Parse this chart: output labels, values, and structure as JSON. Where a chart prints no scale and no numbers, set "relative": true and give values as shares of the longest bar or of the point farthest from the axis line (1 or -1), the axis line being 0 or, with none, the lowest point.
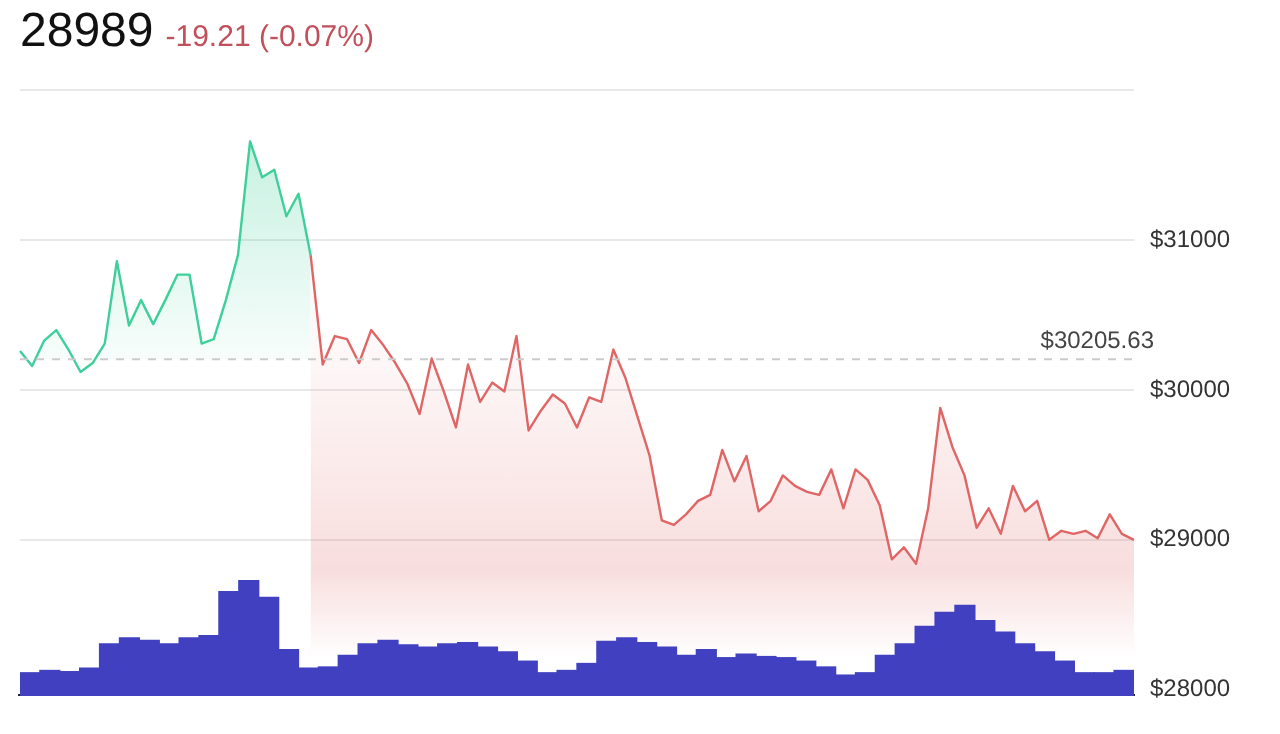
{
  "chart_data": [
    {
      "type": "area",
      "title": "28989",
      "subtitle": "-19.21 (-0.07%)",
      "categories": [
        null,
        null,
        null,
        null,
        null,
        null,
        null,
        null,
        null,
        null,
        null,
        null,
        null,
        null,
        null,
        null,
        null,
        null,
        null,
        null,
        null,
        null,
        null,
        null,
        null,
        null,
        null,
        null,
        null,
        null,
        null,
        null,
        null,
        null,
        null,
        null,
        null,
        null,
        null,
        null,
        null,
        null,
        null,
        null,
        null,
        null,
        null,
        null,
        null,
        null,
        null,
        null,
        null,
        null,
        null,
        null,
        null,
        null,
        null,
        null,
        null,
        null,
        null,
        null,
        null,
        null,
        null,
        null,
        null,
        null,
        null,
        null,
        null,
        null,
        null,
        null,
        null,
        null,
        null,
        null,
        null,
        null,
        null,
        null,
        null,
        null,
        null,
        null,
        null,
        null,
        null,
        null,
        null
      ],
      "series": [
        {
          "color": "#3ecf9a",
          "values": [
            30260,
            30160,
            30330,
            30400,
            30270,
            30120,
            30180,
            30310,
            30860,
            30430,
            30600,
            30440,
            30600,
            30770,
            30770,
            30310,
            30340,
            30600,
            30900,
            31660,
            31420,
            31470,
            31160,
            31310,
            30900,
            null,
            null,
            null,
            null,
            null,
            null,
            null,
            null,
            null,
            null,
            null,
            null,
            null,
            null,
            null,
            null,
            null,
            null,
            null,
            null,
            null,
            null,
            null,
            null,
            null,
            null,
            null,
            null,
            null,
            null,
            null,
            null,
            null,
            null,
            null,
            null,
            null,
            null,
            null,
            null,
            null,
            null,
            null,
            null,
            null,
            null,
            null,
            null,
            null,
            null,
            null,
            null,
            null,
            null,
            null,
            null,
            null,
            null,
            null,
            null,
            null,
            null,
            null,
            null,
            null,
            null,
            null,
            null
          ]
        },
        {
          "color": "#e06666",
          "values": [
            null,
            null,
            null,
            null,
            null,
            null,
            null,
            null,
            null,
            null,
            null,
            null,
            null,
            null,
            null,
            null,
            null,
            null,
            null,
            null,
            null,
            null,
            null,
            null,
            30900,
            30170,
            30360,
            30340,
            30180,
            30400,
            30300,
            30180,
            30040,
            29840,
            30210,
            29990,
            29750,
            30170,
            29920,
            30050,
            29990,
            30360,
            29730,
            29860,
            29970,
            29910,
            29750,
            29950,
            29920,
            30270,
            30080,
            29820,
            29560,
            29130,
            29100,
            29170,
            29260,
            29300,
            29600,
            29390,
            29560,
            29190,
            29260,
            29430,
            29360,
            29320,
            29300,
            29470,
            29210,
            29470,
            29400,
            29230,
            28870,
            28950,
            28840,
            29210,
            29880,
            29620,
            29430,
            29080,
            29210,
            29040,
            29360,
            29190,
            29260,
            29000,
            29060,
            29040,
            29060,
            29010,
            29170,
            29040,
            29000
          ]
        }
      ],
      "ylim": [
        28000,
        32000
      ],
      "yticks": [
        {
          "value": 28000,
          "label": "$28000"
        },
        {
          "value": 29000,
          "label": "$29000"
        },
        {
          "value": 30000,
          "label": "$30000"
        },
        {
          "value": 31000,
          "label": "$31000"
        },
        {
          "value": 32000,
          "label": null
        }
      ],
      "ref_lines": [
        {
          "axis": "y",
          "value": 30205.63,
          "label": "$30205.63",
          "color": "#cccccc",
          "line_style": "dashed"
        }
      ],
      "grid": "y",
      "tick_labels": "y",
      "legend": false,
      "marker": "none"
    },
    {
      "type": "bar",
      "relative": true,
      "color": "#4040c0",
      "tick_labels": false,
      "categories": [
        null,
        null,
        null,
        null,
        null,
        null,
        null,
        null,
        null,
        null,
        null,
        null,
        null,
        null,
        null,
        null,
        null,
        null,
        null,
        null,
        null,
        null,
        null,
        null,
        null,
        null,
        null,
        null,
        null,
        null,
        null,
        null,
        null,
        null,
        null,
        null,
        null,
        null,
        null,
        null,
        null,
        null,
        null,
        null,
        null,
        null,
        null,
        null,
        null,
        null,
        null,
        null,
        null,
        null,
        null,
        null
      ],
      "values": [
        0.2,
        0.22,
        0.21,
        0.24,
        0.45,
        0.5,
        0.48,
        0.45,
        0.5,
        0.52,
        0.9,
        1.0,
        0.85,
        0.4,
        0.24,
        0.25,
        0.35,
        0.45,
        0.48,
        0.44,
        0.42,
        0.45,
        0.46,
        0.42,
        0.38,
        0.3,
        0.2,
        0.22,
        0.28,
        0.47,
        0.5,
        0.46,
        0.42,
        0.35,
        0.4,
        0.33,
        0.36,
        0.34,
        0.33,
        0.3,
        0.25,
        0.18,
        0.2,
        0.35,
        0.45,
        0.6,
        0.72,
        0.78,
        0.65,
        0.55,
        0.45,
        0.38,
        0.3,
        0.2,
        0.2,
        0.22
      ]
    }
  ]
}
